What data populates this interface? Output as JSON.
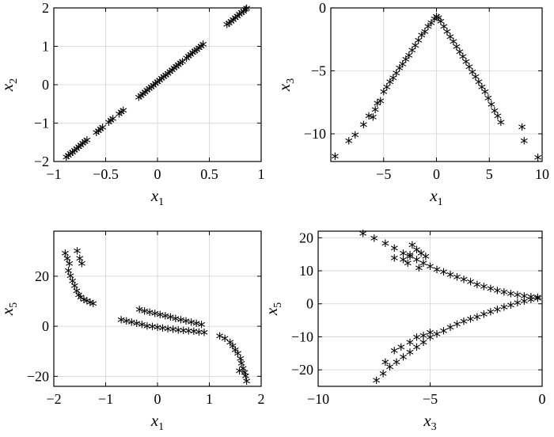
{
  "chart_data": [
    {
      "type": "scatter",
      "marker": "*",
      "xlabel": "x",
      "xlabel_sub": "1",
      "ylabel": "x",
      "ylabel_sub": "2",
      "xlim": [
        -1,
        1
      ],
      "ylim": [
        -2,
        2
      ],
      "xticks": [
        -1,
        -0.5,
        0,
        0.5,
        1
      ],
      "xtick_labels": [
        "−1",
        "−0.5",
        "0",
        "0.5",
        "1"
      ],
      "yticks": [
        -2,
        -1,
        0,
        1,
        2
      ],
      "ytick_labels": [
        "−2",
        "−1",
        "0",
        "1",
        "2"
      ],
      "grid": true,
      "points": [
        [
          -0.88,
          -1.96
        ],
        [
          -0.86,
          -1.92
        ],
        [
          -0.84,
          -1.87
        ],
        [
          -0.82,
          -1.83
        ],
        [
          -0.8,
          -1.78
        ],
        [
          -0.78,
          -1.74
        ],
        [
          -0.76,
          -1.69
        ],
        [
          -0.74,
          -1.65
        ],
        [
          -0.72,
          -1.6
        ],
        [
          -0.7,
          -1.56
        ],
        [
          -0.68,
          -1.52
        ],
        [
          -0.59,
          -1.32
        ],
        [
          -0.57,
          -1.28
        ],
        [
          -0.55,
          -1.23
        ],
        [
          -0.53,
          -1.19
        ],
        [
          -0.47,
          -1.05
        ],
        [
          -0.45,
          -1.0
        ],
        [
          -0.43,
          -0.96
        ],
        [
          -0.37,
          -0.83
        ],
        [
          -0.35,
          -0.78
        ],
        [
          -0.33,
          -0.74
        ],
        [
          -0.18,
          -0.4
        ],
        [
          -0.16,
          -0.36
        ],
        [
          -0.14,
          -0.31
        ],
        [
          -0.12,
          -0.27
        ],
        [
          -0.1,
          -0.22
        ],
        [
          -0.08,
          -0.18
        ],
        [
          -0.06,
          -0.13
        ],
        [
          -0.04,
          -0.09
        ],
        [
          -0.02,
          -0.04
        ],
        [
          0.0,
          0.0
        ],
        [
          0.02,
          0.04
        ],
        [
          0.04,
          0.09
        ],
        [
          0.06,
          0.13
        ],
        [
          0.08,
          0.18
        ],
        [
          0.1,
          0.22
        ],
        [
          0.12,
          0.27
        ],
        [
          0.14,
          0.31
        ],
        [
          0.16,
          0.36
        ],
        [
          0.18,
          0.4
        ],
        [
          0.2,
          0.44
        ],
        [
          0.22,
          0.49
        ],
        [
          0.24,
          0.53
        ],
        [
          0.28,
          0.62
        ],
        [
          0.3,
          0.67
        ],
        [
          0.32,
          0.71
        ],
        [
          0.34,
          0.76
        ],
        [
          0.36,
          0.8
        ],
        [
          0.38,
          0.84
        ],
        [
          0.4,
          0.89
        ],
        [
          0.42,
          0.93
        ],
        [
          0.44,
          0.98
        ],
        [
          0.67,
          1.49
        ],
        [
          0.69,
          1.53
        ],
        [
          0.71,
          1.58
        ],
        [
          0.73,
          1.62
        ],
        [
          0.75,
          1.67
        ],
        [
          0.77,
          1.71
        ],
        [
          0.79,
          1.76
        ],
        [
          0.81,
          1.8
        ],
        [
          0.83,
          1.84
        ],
        [
          0.85,
          1.89
        ],
        [
          0.86,
          1.92
        ]
      ]
    },
    {
      "type": "scatter",
      "marker": "*",
      "xlabel": "x",
      "xlabel_sub": "1",
      "ylabel": "x",
      "ylabel_sub": "3",
      "xlim": [
        -10,
        10
      ],
      "ylim": [
        -12.2,
        0
      ],
      "xticks": [
        -5,
        0,
        5,
        10
      ],
      "xtick_labels": [
        "−5",
        "0",
        "5",
        "10"
      ],
      "yticks": [
        -10,
        -5,
        0
      ],
      "ytick_labels": [
        "−10",
        "−5",
        "0"
      ],
      "grid": true,
      "points": [
        [
          -9.6,
          -12.0
        ],
        [
          -8.3,
          -10.8
        ],
        [
          -7.7,
          -10.3
        ],
        [
          -6.9,
          -9.5
        ],
        [
          -6.4,
          -8.8
        ],
        [
          -6.0,
          -8.9
        ],
        [
          -5.8,
          -8.3
        ],
        [
          -5.6,
          -7.8
        ],
        [
          -5.3,
          -7.6
        ],
        [
          -5.0,
          -6.9
        ],
        [
          -4.7,
          -6.5
        ],
        [
          -4.4,
          -6.1
        ],
        [
          -4.1,
          -5.8
        ],
        [
          -3.8,
          -5.4
        ],
        [
          -3.5,
          -5.0
        ],
        [
          -3.2,
          -4.7
        ],
        [
          -2.9,
          -4.3
        ],
        [
          -2.6,
          -4.0
        ],
        [
          -2.3,
          -3.6
        ],
        [
          -2.0,
          -3.2
        ],
        [
          -1.7,
          -2.8
        ],
        [
          -1.4,
          -2.4
        ],
        [
          -1.1,
          -2.1
        ],
        [
          -0.8,
          -1.7
        ],
        [
          -0.5,
          -1.4
        ],
        [
          -0.2,
          -1.1
        ],
        [
          0.0,
          -0.9
        ],
        [
          0.2,
          -1.0
        ],
        [
          0.4,
          -1.3
        ],
        [
          0.7,
          -1.7
        ],
        [
          1.0,
          -2.1
        ],
        [
          1.3,
          -2.5
        ],
        [
          1.6,
          -2.9
        ],
        [
          1.9,
          -3.3
        ],
        [
          2.2,
          -3.7
        ],
        [
          2.5,
          -4.1
        ],
        [
          2.8,
          -4.5
        ],
        [
          3.1,
          -4.9
        ],
        [
          3.4,
          -5.3
        ],
        [
          3.7,
          -5.7
        ],
        [
          4.0,
          -6.1
        ],
        [
          4.3,
          -6.5
        ],
        [
          4.6,
          -6.9
        ],
        [
          4.9,
          -7.4
        ],
        [
          5.2,
          -7.9
        ],
        [
          5.5,
          -8.4
        ],
        [
          5.8,
          -8.8
        ],
        [
          6.1,
          -9.3
        ],
        [
          8.1,
          -9.7
        ],
        [
          8.3,
          -10.8
        ],
        [
          9.6,
          -12.1
        ]
      ]
    },
    {
      "type": "scatter",
      "marker": "*",
      "xlabel": "x",
      "xlabel_sub": "1",
      "ylabel": "x",
      "ylabel_sub": "5",
      "xlim": [
        -2,
        2
      ],
      "ylim": [
        -24,
        38
      ],
      "xticks": [
        -2,
        -1,
        0,
        1,
        2
      ],
      "xtick_labels": [
        "−2",
        "−1",
        "0",
        "1",
        "2"
      ],
      "yticks": [
        -20,
        0,
        20
      ],
      "ytick_labels": [
        "−20",
        "0",
        "20"
      ],
      "grid": true,
      "points": [
        [
          -1.78,
          28
        ],
        [
          -1.74,
          26
        ],
        [
          -1.7,
          24
        ],
        [
          -1.72,
          21
        ],
        [
          -1.68,
          19
        ],
        [
          -1.64,
          17
        ],
        [
          -1.6,
          15
        ],
        [
          -1.56,
          13
        ],
        [
          -1.52,
          11.5
        ],
        [
          -1.48,
          10.5
        ],
        [
          -1.42,
          9.5
        ],
        [
          -1.36,
          9
        ],
        [
          -1.3,
          8.5
        ],
        [
          -1.24,
          8
        ],
        [
          -1.55,
          29
        ],
        [
          -1.5,
          26
        ],
        [
          -1.46,
          24
        ],
        [
          -0.7,
          1.5
        ],
        [
          -0.6,
          1
        ],
        [
          -0.5,
          0.5
        ],
        [
          -0.4,
          0
        ],
        [
          -0.3,
          -0.5
        ],
        [
          -0.2,
          -1
        ],
        [
          -0.1,
          -1.3
        ],
        [
          0.0,
          -1.6
        ],
        [
          0.1,
          -1.9
        ],
        [
          0.2,
          -2.2
        ],
        [
          0.3,
          -2.4
        ],
        [
          0.4,
          -2.6
        ],
        [
          0.5,
          -2.8
        ],
        [
          0.6,
          -3.0
        ],
        [
          0.7,
          -3.2
        ],
        [
          0.8,
          -3.4
        ],
        [
          0.9,
          -3.6
        ],
        [
          -0.35,
          5.5
        ],
        [
          -0.25,
          5
        ],
        [
          -0.15,
          4.5
        ],
        [
          -0.05,
          4
        ],
        [
          0.05,
          3.5
        ],
        [
          0.15,
          3
        ],
        [
          0.25,
          2.5
        ],
        [
          0.35,
          2
        ],
        [
          0.45,
          1.5
        ],
        [
          0.55,
          1
        ],
        [
          0.65,
          0.5
        ],
        [
          0.75,
          0
        ],
        [
          0.85,
          -0.5
        ],
        [
          1.2,
          -5
        ],
        [
          1.3,
          -6
        ],
        [
          1.4,
          -7.5
        ],
        [
          1.45,
          -9
        ],
        [
          1.5,
          -10.5
        ],
        [
          1.55,
          -12
        ],
        [
          1.6,
          -14
        ],
        [
          1.62,
          -16
        ],
        [
          1.65,
          -18
        ],
        [
          1.68,
          -19.5
        ],
        [
          1.7,
          -21
        ],
        [
          1.72,
          -23
        ],
        [
          1.58,
          -19
        ]
      ]
    },
    {
      "type": "scatter",
      "marker": "*",
      "xlabel": "x",
      "xlabel_sub": "3",
      "ylabel": "x",
      "ylabel_sub": "5",
      "xlim": [
        -10,
        0
      ],
      "ylim": [
        -25,
        22
      ],
      "xticks": [
        -10,
        -5,
        0
      ],
      "xtick_labels": [
        "−10",
        "−5",
        "0"
      ],
      "yticks": [
        -20,
        -10,
        0,
        10,
        20
      ],
      "ytick_labels": [
        "−20",
        "−10",
        "0",
        "10",
        "20"
      ],
      "grid": true,
      "points": [
        [
          -8.0,
          20.5
        ],
        [
          -7.5,
          19
        ],
        [
          -7.0,
          17.5
        ],
        [
          -6.6,
          16
        ],
        [
          -6.2,
          14.5
        ],
        [
          -5.9,
          13.5
        ],
        [
          -5.6,
          12.5
        ],
        [
          -5.3,
          11.5
        ],
        [
          -5.0,
          10.5
        ],
        [
          -4.7,
          9.5
        ],
        [
          -4.4,
          8.8
        ],
        [
          -4.1,
          8
        ],
        [
          -3.8,
          7.2
        ],
        [
          -3.5,
          6.5
        ],
        [
          -3.2,
          5.8
        ],
        [
          -2.9,
          5
        ],
        [
          -2.6,
          4.4
        ],
        [
          -2.3,
          3.8
        ],
        [
          -2.0,
          3.2
        ],
        [
          -1.7,
          2.7
        ],
        [
          -1.4,
          2.2
        ],
        [
          -1.1,
          1.8
        ],
        [
          -0.8,
          1.5
        ],
        [
          -0.5,
          1.3
        ],
        [
          -0.2,
          1.1
        ],
        [
          -5.8,
          17
        ],
        [
          -5.6,
          15.5
        ],
        [
          -5.4,
          14.5
        ],
        [
          -5.2,
          13.5
        ],
        [
          -5.9,
          14
        ],
        [
          -6.2,
          12.5
        ],
        [
          -6.6,
          13
        ],
        [
          -6.0,
          11.5
        ],
        [
          -5.5,
          10
        ],
        [
          -7.4,
          -24
        ],
        [
          -7.1,
          -22
        ],
        [
          -6.8,
          -20
        ],
        [
          -6.5,
          -18.5
        ],
        [
          -6.2,
          -17
        ],
        [
          -5.9,
          -15.5
        ],
        [
          -5.6,
          -14
        ],
        [
          -5.3,
          -12.5
        ],
        [
          -5.0,
          -11
        ],
        [
          -4.7,
          -10
        ],
        [
          -4.4,
          -9
        ],
        [
          -4.1,
          -8
        ],
        [
          -3.8,
          -7
        ],
        [
          -3.5,
          -6.2
        ],
        [
          -3.2,
          -5.5
        ],
        [
          -2.9,
          -4.8
        ],
        [
          -2.6,
          -4
        ],
        [
          -2.3,
          -3.3
        ],
        [
          -2.0,
          -2.6
        ],
        [
          -1.7,
          -1.9
        ],
        [
          -1.4,
          -1.3
        ],
        [
          -1.1,
          -0.6
        ],
        [
          -0.8,
          -0.1
        ],
        [
          -0.5,
          0.4
        ],
        [
          -0.2,
          0.8
        ],
        [
          -7.0,
          -18.5
        ],
        [
          -6.6,
          -15
        ],
        [
          -6.3,
          -14
        ],
        [
          -5.9,
          -12.5
        ],
        [
          -5.6,
          -11
        ],
        [
          -5.3,
          -10.5
        ],
        [
          -5.0,
          -9.5
        ]
      ]
    }
  ]
}
